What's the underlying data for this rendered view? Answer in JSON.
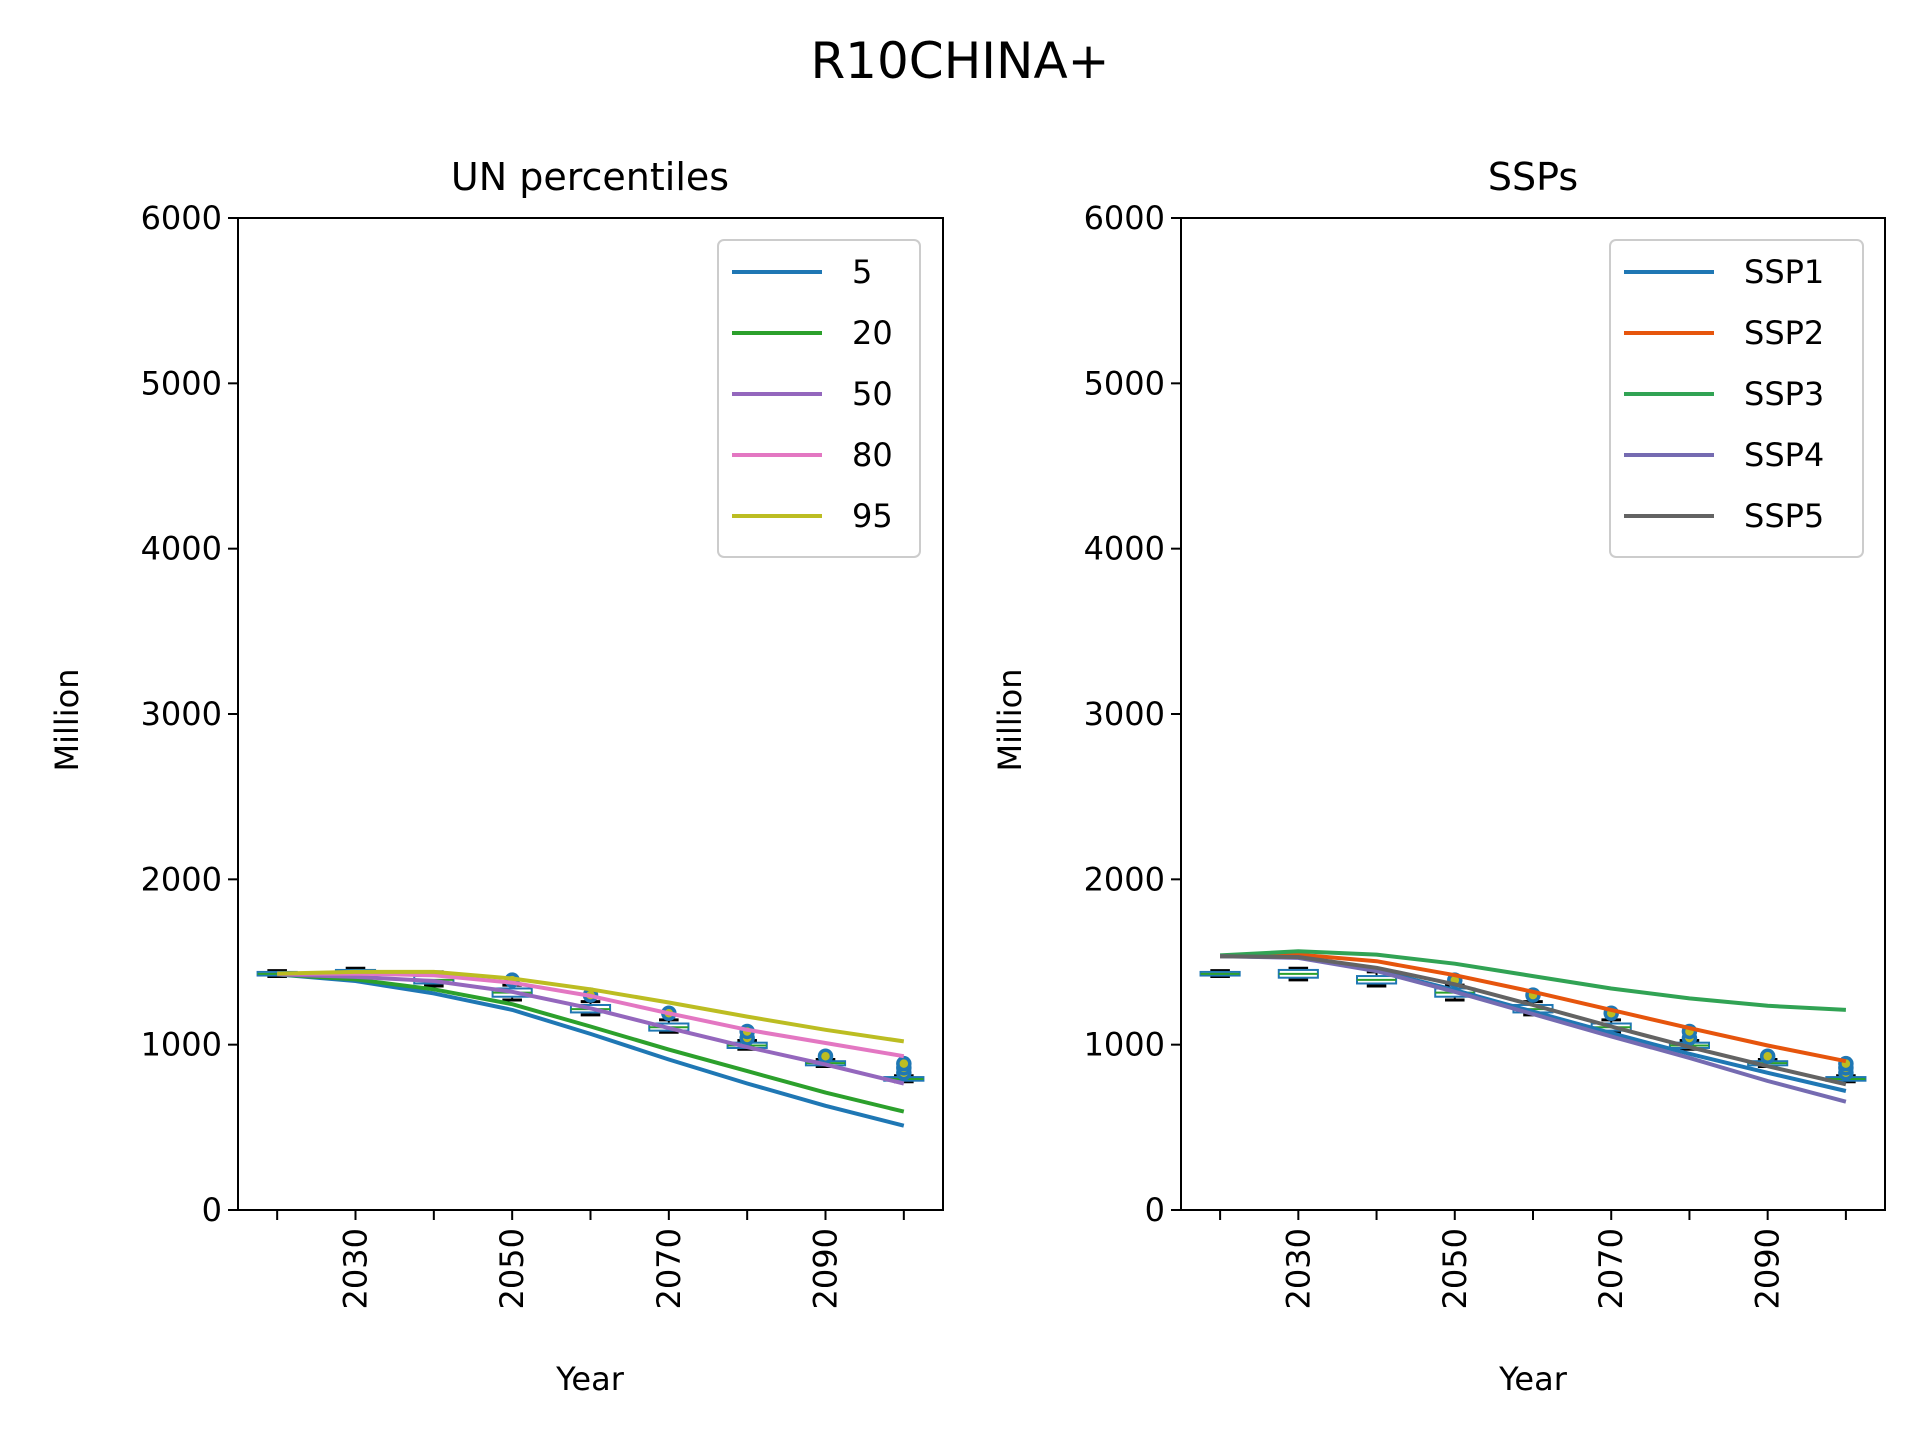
{
  "figure_title": "R10CHINA+",
  "chart_data": [
    {
      "type": "line",
      "title": "UN percentiles",
      "xlabel": "Year",
      "ylabel": "Million",
      "ylim": [
        0,
        6000
      ],
      "xlim": [
        2015,
        2105
      ],
      "yticks": [
        0,
        1000,
        2000,
        3000,
        4000,
        5000,
        6000
      ],
      "xticks": [
        2020,
        2030,
        2040,
        2050,
        2060,
        2070,
        2080,
        2090,
        2100
      ],
      "xtick_labels": [
        "",
        "2030",
        "",
        "2050",
        "",
        "2070",
        "",
        "2090",
        ""
      ],
      "legend_position": "top-right",
      "x": [
        2020,
        2030,
        2040,
        2050,
        2060,
        2070,
        2080,
        2090,
        2100
      ],
      "series": [
        {
          "name": "5",
          "color": "#1f77b4",
          "values": [
            1425,
            1385,
            1310,
            1210,
            1065,
            910,
            765,
            630,
            510
          ]
        },
        {
          "name": "20",
          "color": "#2ca02c",
          "values": [
            1425,
            1395,
            1335,
            1245,
            1110,
            970,
            840,
            710,
            595
          ]
        },
        {
          "name": "50",
          "color": "#9467bd",
          "values": [
            1425,
            1410,
            1385,
            1320,
            1220,
            1100,
            985,
            880,
            765
          ]
        },
        {
          "name": "80",
          "color": "#e377c2",
          "values": [
            1430,
            1430,
            1420,
            1375,
            1295,
            1190,
            1090,
            1010,
            930
          ]
        },
        {
          "name": "95",
          "color": "#bcbd22",
          "values": [
            1430,
            1440,
            1440,
            1400,
            1335,
            1255,
            1170,
            1090,
            1020
          ]
        }
      ],
      "boxes": [
        {
          "x": 2020,
          "q1": 1418,
          "median": 1428,
          "q3": 1440,
          "low": 1412,
          "high": 1448,
          "outliers": []
        },
        {
          "x": 2030,
          "q1": 1405,
          "median": 1428,
          "q3": 1452,
          "low": 1392,
          "high": 1462,
          "outliers": []
        },
        {
          "x": 2040,
          "q1": 1370,
          "median": 1392,
          "q3": 1415,
          "low": 1355,
          "high": 1440,
          "outliers": []
        },
        {
          "x": 2050,
          "q1": 1290,
          "median": 1315,
          "q3": 1340,
          "low": 1270,
          "high": 1360,
          "outliers": [
            1390
          ]
        },
        {
          "x": 2060,
          "q1": 1195,
          "median": 1215,
          "q3": 1240,
          "low": 1180,
          "high": 1260,
          "outliers": [
            1300
          ]
        },
        {
          "x": 2070,
          "q1": 1085,
          "median": 1105,
          "q3": 1128,
          "low": 1075,
          "high": 1150,
          "outliers": [
            1190
          ]
        },
        {
          "x": 2080,
          "q1": 980,
          "median": 995,
          "q3": 1012,
          "low": 972,
          "high": 1025,
          "outliers": [
            1040,
            1080
          ]
        },
        {
          "x": 2090,
          "q1": 875,
          "median": 888,
          "q3": 900,
          "low": 868,
          "high": 910,
          "outliers": [
            930
          ]
        },
        {
          "x": 2100,
          "q1": 782,
          "median": 792,
          "q3": 804,
          "low": 776,
          "high": 812,
          "outliers": [
            830,
            860,
            885
          ]
        }
      ]
    },
    {
      "type": "line",
      "title": "SSPs",
      "xlabel": "Year",
      "ylabel": "Million",
      "ylim": [
        0,
        6000
      ],
      "xlim": [
        2015,
        2105
      ],
      "yticks": [
        0,
        1000,
        2000,
        3000,
        4000,
        5000,
        6000
      ],
      "xticks": [
        2020,
        2030,
        2040,
        2050,
        2060,
        2070,
        2080,
        2090,
        2100
      ],
      "xtick_labels": [
        "",
        "2030",
        "",
        "2050",
        "",
        "2070",
        "",
        "2090",
        ""
      ],
      "legend_position": "top-right",
      "x": [
        2020,
        2030,
        2040,
        2050,
        2060,
        2070,
        2080,
        2090,
        2100
      ],
      "series": [
        {
          "name": "SSP1",
          "color": "#1f77b4",
          "values": [
            1535,
            1530,
            1450,
            1330,
            1200,
            1070,
            945,
            830,
            720
          ]
        },
        {
          "name": "SSP2",
          "color": "#e6550d",
          "values": [
            1535,
            1545,
            1505,
            1420,
            1320,
            1210,
            1100,
            995,
            900
          ]
        },
        {
          "name": "SSP3",
          "color": "#31a354",
          "values": [
            1540,
            1565,
            1545,
            1490,
            1415,
            1340,
            1280,
            1235,
            1210
          ]
        },
        {
          "name": "SSP4",
          "color": "#756bb1",
          "values": [
            1535,
            1525,
            1445,
            1320,
            1185,
            1050,
            920,
            780,
            655
          ]
        },
        {
          "name": "SSP5",
          "color": "#636363",
          "values": [
            1535,
            1530,
            1465,
            1365,
            1240,
            1110,
            985,
            870,
            760
          ]
        }
      ],
      "boxes": [
        {
          "x": 2020,
          "q1": 1418,
          "median": 1428,
          "q3": 1440,
          "low": 1412,
          "high": 1448,
          "outliers": []
        },
        {
          "x": 2030,
          "q1": 1405,
          "median": 1428,
          "q3": 1452,
          "low": 1392,
          "high": 1462,
          "outliers": []
        },
        {
          "x": 2040,
          "q1": 1370,
          "median": 1392,
          "q3": 1415,
          "low": 1355,
          "high": 1440,
          "outliers": []
        },
        {
          "x": 2050,
          "q1": 1290,
          "median": 1315,
          "q3": 1340,
          "low": 1270,
          "high": 1360,
          "outliers": [
            1390
          ]
        },
        {
          "x": 2060,
          "q1": 1195,
          "median": 1215,
          "q3": 1240,
          "low": 1180,
          "high": 1260,
          "outliers": [
            1300
          ]
        },
        {
          "x": 2070,
          "q1": 1085,
          "median": 1105,
          "q3": 1128,
          "low": 1075,
          "high": 1150,
          "outliers": [
            1190
          ]
        },
        {
          "x": 2080,
          "q1": 980,
          "median": 995,
          "q3": 1012,
          "low": 972,
          "high": 1025,
          "outliers": [
            1040,
            1080
          ]
        },
        {
          "x": 2090,
          "q1": 875,
          "median": 888,
          "q3": 900,
          "low": 868,
          "high": 910,
          "outliers": [
            930
          ]
        },
        {
          "x": 2100,
          "q1": 782,
          "median": 792,
          "q3": 804,
          "low": 776,
          "high": 812,
          "outliers": [
            830,
            860,
            885
          ]
        }
      ]
    }
  ],
  "styles": {
    "box_edge_color": "#1f77b4",
    "box_median_color": "#2ca02c",
    "whisker_cap_color": "#000000",
    "flier_edge_color": "#1f77b4",
    "flier_fill_color": "#bcbd22"
  }
}
